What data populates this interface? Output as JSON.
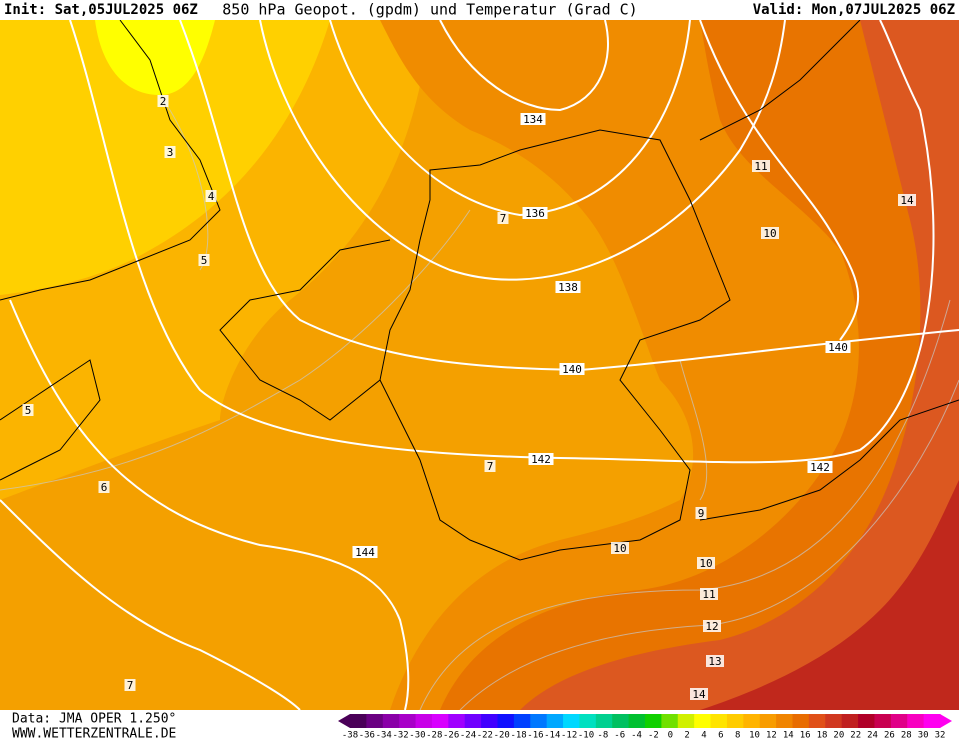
{
  "header": {
    "init": "Init: Sat,05JUL2025 06Z",
    "title": "850 hPa Geopot. (gpdm) und Temperatur (Grad C)",
    "valid": "Valid: Mon,07JUL2025 06Z"
  },
  "map": {
    "geopotential_labels": [
      "134",
      "136",
      "138",
      "140",
      "140",
      "142",
      "142",
      "144"
    ],
    "temperature_labels": [
      "2",
      "3",
      "4",
      "5",
      "5",
      "6",
      "7",
      "7",
      "7",
      "9",
      "10",
      "10",
      "10",
      "11",
      "11",
      "12",
      "13",
      "14",
      "14"
    ]
  },
  "footer": {
    "data": "Data: JMA OPER 1.250°",
    "website": "WWW.WETTERZENTRALE.DE"
  },
  "colorbar": {
    "labels": [
      "-38",
      "-36",
      "-34",
      "-32",
      "-30",
      "-28",
      "-26",
      "-24",
      "-22",
      "-20",
      "-18",
      "-16",
      "-14",
      "-12",
      "-10",
      "-8",
      "-6",
      "-4",
      "-2",
      "0",
      "2",
      "4",
      "6",
      "8",
      "10",
      "12",
      "14",
      "16",
      "18",
      "20",
      "22",
      "24",
      "26",
      "28",
      "30",
      "32"
    ],
    "colors": [
      "#4a0058",
      "#6a0082",
      "#8a00a8",
      "#a800c8",
      "#c800e8",
      "#d800ff",
      "#a000ff",
      "#7000ff",
      "#4000ff",
      "#1010ff",
      "#0040ff",
      "#0078ff",
      "#00a8ff",
      "#00d8ff",
      "#00e0c0",
      "#00d090",
      "#00c060",
      "#00c030",
      "#10d000",
      "#70e000",
      "#d0f000",
      "#ffff00",
      "#ffe400",
      "#ffcc00",
      "#ffb400",
      "#f89c00",
      "#f08400",
      "#e86c00",
      "#e05018",
      "#d03820",
      "#c02020",
      "#b00028",
      "#c80050",
      "#e00088",
      "#f800c0",
      "#ff00f0"
    ]
  }
}
